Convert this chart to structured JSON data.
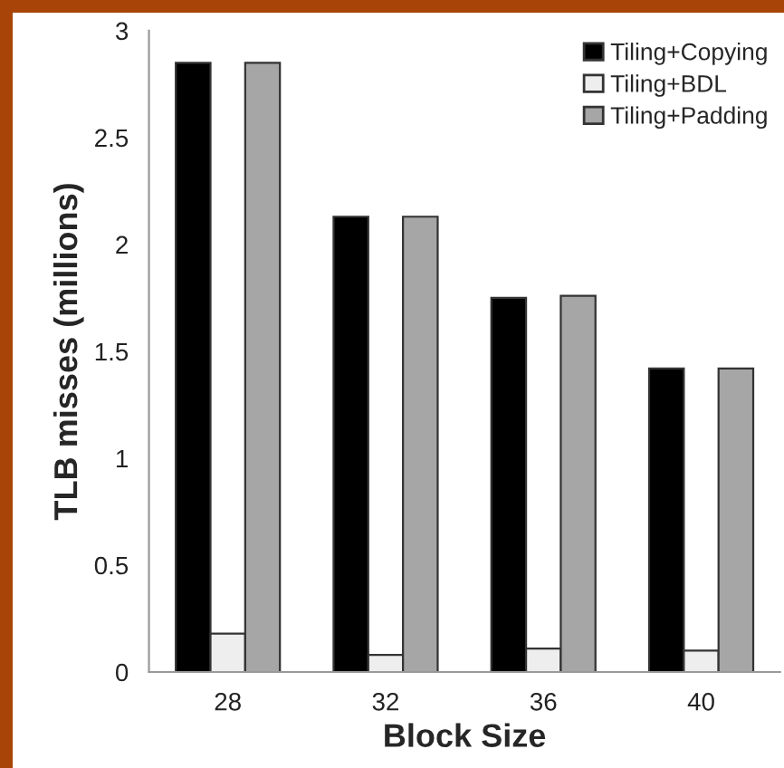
{
  "chart_data": {
    "type": "bar",
    "xlabel": "Block Size",
    "ylabel": "TLB misses (millions)",
    "categories": [
      "28",
      "32",
      "36",
      "40"
    ],
    "series": [
      {
        "name": "Tiling+Copying",
        "color": "#000000",
        "values": [
          2.85,
          2.13,
          1.75,
          1.42
        ]
      },
      {
        "name": "Tiling+BDL",
        "color": "#eeeeee",
        "values": [
          0.18,
          0.08,
          0.11,
          0.1
        ]
      },
      {
        "name": "Tiling+Padding",
        "color": "#a6a6a6",
        "values": [
          2.85,
          2.13,
          1.76,
          1.42
        ]
      }
    ],
    "ylim": [
      0,
      3
    ],
    "yticks": [
      0,
      0.5,
      1,
      1.5,
      2,
      2.5,
      3
    ],
    "grid": false,
    "legend": "top right"
  }
}
